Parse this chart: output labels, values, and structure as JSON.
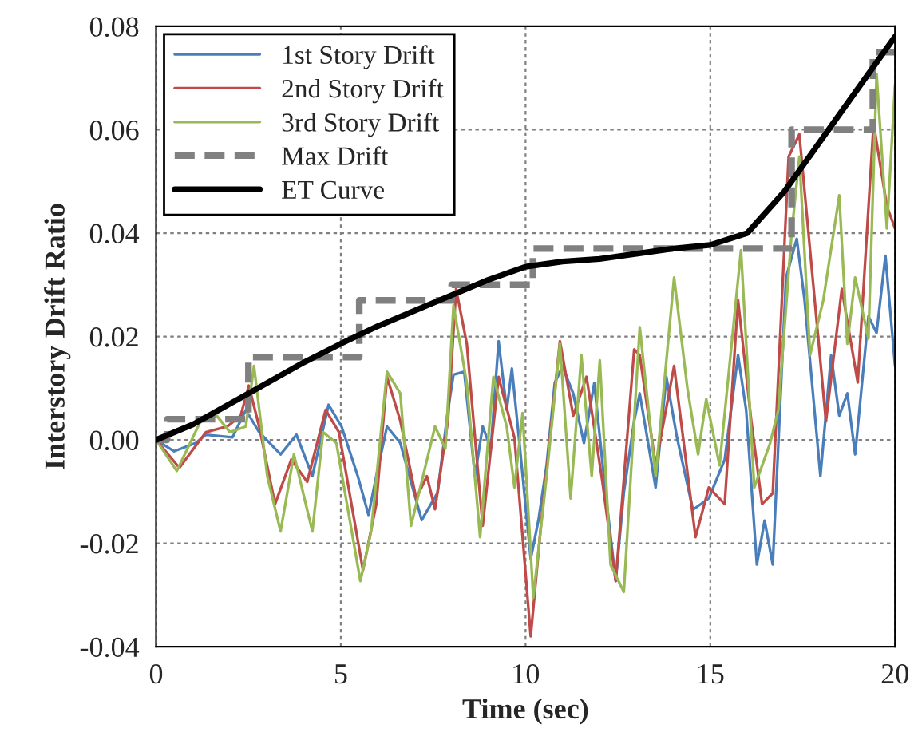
{
  "chart_data": {
    "type": "line",
    "xlabel": "Time (sec)",
    "ylabel": "Interstory Drift Ratio",
    "xlim": [
      0,
      20
    ],
    "xticks": [
      0,
      5,
      10,
      15,
      20
    ],
    "ylim": [
      -0.04,
      0.08
    ],
    "yticks": [
      -0.04,
      -0.02,
      {
        "value": 0,
        "label": "0.00"
      },
      0.02,
      0.04,
      0.06,
      0.08
    ],
    "grid": true,
    "legend": "top left",
    "marker": "none",
    "series": [
      {
        "name": "1st Story Drift",
        "color": "#4a7ebb",
        "line_style": "solid",
        "x": [
          0,
          0.49,
          1.07,
          1.35,
          2.07,
          2.43,
          2.79,
          3.37,
          3.8,
          4.23,
          4.67,
          5.02,
          5.46,
          5.75,
          5.96,
          6.25,
          6.61,
          6.9,
          7.19,
          7.62,
          7.9,
          8.05,
          8.34,
          8.63,
          8.84,
          9.06,
          9.27,
          9.49,
          9.63,
          9.85,
          10.14,
          10.35,
          10.57,
          10.79,
          11.0,
          11.29,
          11.58,
          11.86,
          12.15,
          12.44,
          12.66,
          12.94,
          13.09,
          13.52,
          13.81,
          14.1,
          14.53,
          14.96,
          15.39,
          15.75,
          15.97,
          16.26,
          16.47,
          16.69,
          17.05,
          17.34,
          17.55,
          17.98,
          18.27,
          18.49,
          18.71,
          18.92,
          19.28,
          19.5,
          19.74,
          20.0
        ],
        "values": [
          0,
          -0.0022,
          -0.0006,
          0.001,
          0.0005,
          0.0058,
          0.0015,
          -0.0028,
          0.001,
          -0.007,
          0.0068,
          0.0026,
          -0.007,
          -0.0145,
          -0.007,
          0.0026,
          -0.0006,
          -0.0081,
          -0.0155,
          -0.0102,
          0.0058,
          0.0126,
          0.0132,
          -0.007,
          0.0026,
          -0.0017,
          0.0191,
          0.0058,
          0.0138,
          -0.0017,
          -0.023,
          -0.0155,
          -0.0049,
          0.011,
          0.0142,
          0.009,
          -0.0006,
          0.011,
          -0.0092,
          -0.0273,
          -0.0102,
          0.0037,
          0.009,
          -0.0092,
          0.0122,
          0.0004,
          -0.0135,
          -0.0113,
          -0.0038,
          0.0164,
          0.0058,
          -0.0241,
          -0.0156,
          -0.0241,
          0.0314,
          0.0389,
          0.0271,
          -0.007,
          0.0164,
          0.0047,
          0.009,
          -0.0028,
          0.0239,
          0.0207,
          0.0356,
          0.0143
        ]
      },
      {
        "name": "2nd Story Drift",
        "color": "#be4b48",
        "line_style": "solid",
        "x": [
          0,
          0.63,
          1.35,
          1.93,
          2.29,
          2.51,
          2.79,
          3.22,
          3.66,
          4.09,
          4.59,
          4.95,
          5.6,
          5.96,
          6.25,
          6.61,
          7.04,
          7.33,
          7.55,
          7.9,
          8.12,
          8.41,
          8.84,
          9.27,
          9.7,
          10.14,
          10.43,
          10.93,
          11.29,
          11.65,
          12.08,
          12.44,
          12.94,
          13.09,
          13.52,
          14.02,
          14.6,
          14.96,
          15.39,
          15.75,
          16.11,
          16.4,
          16.69,
          17.12,
          17.41,
          17.7,
          18.13,
          18.56,
          18.99,
          19.42,
          19.78,
          20.0
        ],
        "values": [
          0,
          -0.0054,
          0.0015,
          0.0026,
          0.0047,
          0.0105,
          0.0026,
          -0.0124,
          -0.0038,
          -0.0081,
          0.0058,
          0.0015,
          -0.0252,
          -0.0124,
          0.0122,
          0.0037,
          -0.0113,
          -0.007,
          -0.0134,
          0.0037,
          0.0292,
          0.0186,
          -0.0166,
          0.0122,
          0.0004,
          -0.038,
          -0.0155,
          0.0191,
          0.0047,
          0.0122,
          -0.0081,
          -0.0273,
          0.0175,
          0.0164,
          -0.0049,
          0.0143,
          -0.0188,
          -0.0092,
          -0.0124,
          0.0271,
          0.0036,
          -0.0124,
          -0.0103,
          0.0548,
          0.0591,
          0.0367,
          0.0036,
          0.0292,
          0.0111,
          0.0612,
          0.0452,
          0.0409
        ]
      },
      {
        "name": "3rd Story Drift",
        "color": "#98b954",
        "line_style": "solid",
        "x": [
          0,
          0.56,
          1.21,
          1.64,
          2.0,
          2.43,
          2.65,
          3.01,
          3.37,
          3.73,
          4.23,
          4.52,
          4.88,
          5.53,
          5.82,
          6.25,
          6.61,
          6.9,
          7.26,
          7.55,
          7.83,
          8.05,
          8.41,
          8.77,
          9.13,
          9.49,
          9.7,
          9.92,
          10.21,
          10.57,
          10.93,
          11.22,
          11.51,
          11.79,
          12.01,
          12.3,
          12.66,
          13.09,
          13.52,
          14.02,
          14.38,
          14.67,
          14.89,
          15.25,
          15.83,
          16.19,
          16.62,
          16.84,
          17.2,
          17.41,
          17.7,
          18.06,
          18.49,
          18.71,
          18.92,
          19.28,
          19.5,
          19.78,
          20.0
        ],
        "values": [
          0,
          -0.006,
          0.0037,
          0.0047,
          0.0015,
          0.0026,
          0.0143,
          -0.007,
          -0.0177,
          -0.0028,
          -0.0177,
          0.0015,
          -0.0006,
          -0.0273,
          -0.0177,
          0.0132,
          0.009,
          -0.0166,
          -0.006,
          0.0026,
          -0.0017,
          0.026,
          0.011,
          -0.0188,
          0.0122,
          0.0026,
          -0.0092,
          0.0052,
          -0.0305,
          -0.007,
          0.0186,
          -0.0113,
          0.0164,
          -0.007,
          0.0154,
          -0.0241,
          -0.0294,
          0.0218,
          -0.007,
          0.0314,
          0.01,
          -0.0028,
          0.0079,
          -0.0049,
          0.0367,
          -0.0092,
          -0.0006,
          0.0058,
          0.0399,
          0.0548,
          0.0164,
          0.0271,
          0.0473,
          0.0186,
          0.0314,
          0.0196,
          0.0708,
          0.0409,
          0.0687
        ]
      },
      {
        "name": "Max Drift",
        "type": "step",
        "color": "#808080",
        "line_style": "dashed",
        "x": [
          0,
          0.3,
          2.5,
          5.5,
          8.0,
          10.2,
          17.2,
          19.4,
          20
        ],
        "values": [
          0,
          0.004,
          0.016,
          0.027,
          0.03,
          0.037,
          0.06,
          0.075,
          0.075
        ]
      },
      {
        "name": "ET Curve",
        "color": "#000000",
        "line_style": "solid",
        "x": [
          0,
          1,
          2.5,
          4,
          5,
          6,
          7,
          8,
          9,
          10,
          11,
          12,
          13,
          14,
          15,
          16,
          17,
          18,
          19,
          20
        ],
        "values": [
          0,
          0.003,
          0.009,
          0.015,
          0.0186,
          0.022,
          0.025,
          0.028,
          0.031,
          0.0335,
          0.0345,
          0.035,
          0.036,
          0.037,
          0.0377,
          0.04,
          0.048,
          0.058,
          0.068,
          0.078
        ]
      }
    ]
  }
}
